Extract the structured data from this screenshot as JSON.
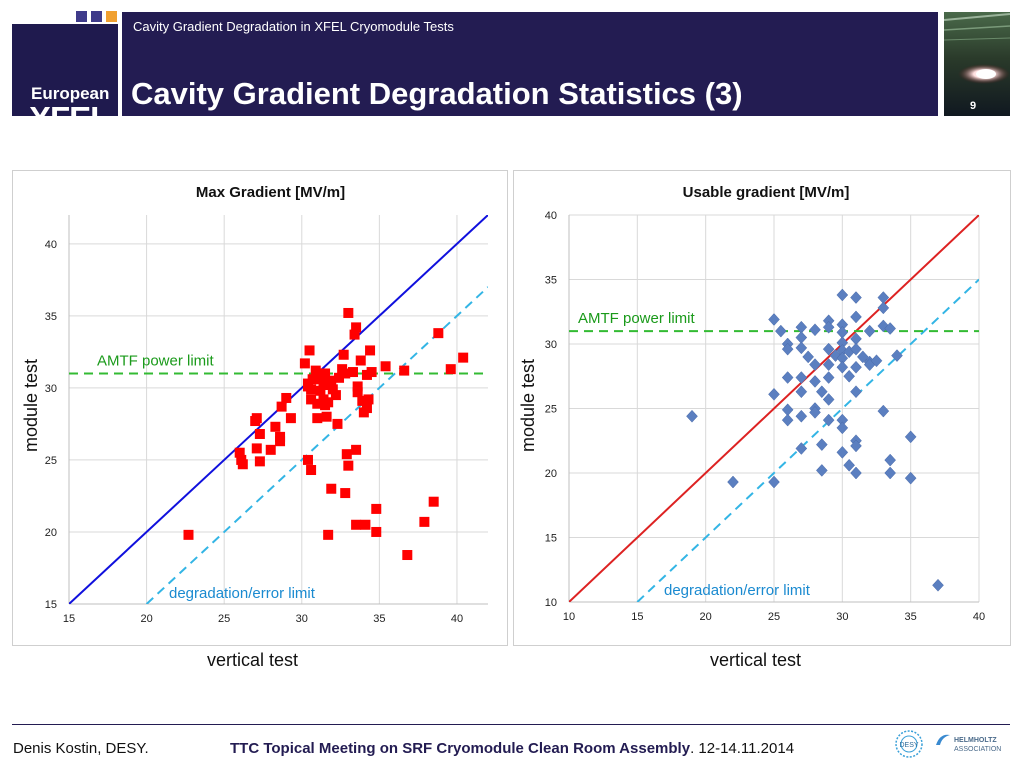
{
  "header": {
    "logo_line1": "European",
    "logo_line2": "XFEL",
    "subtitle": "Cavity Gradient Degradation in XFEL Cryomodule Tests",
    "title": "Cavity Gradient Degradation Statistics (3)",
    "page_number": "9"
  },
  "footer": {
    "author": "Denis Kostin, DESY.",
    "meeting_bold": "TTC Topical Meeting on SRF Cryomodule Clean Room Assembly",
    "meeting_rest": ". 12-14.11.2014",
    "helmholtz_line1": "HELMHOLTZ",
    "helmholtz_line2": "ASSOCIATION",
    "desy_label": "DESY"
  },
  "colors": {
    "header_bg": "#231c52",
    "red_marker": "#ff0000",
    "blue_marker": "#5b7fc0",
    "limit_line": "#33bb33",
    "degradation_line": "#33b5e5"
  },
  "chart_data": [
    {
      "type": "scatter",
      "title": "Max Gradient [MV/m]",
      "xlabel": "vertical test",
      "ylabel": "module test",
      "xlim": [
        15,
        42
      ],
      "ylim": [
        15,
        42
      ],
      "xticks": [
        15,
        20,
        25,
        30,
        35,
        40
      ],
      "yticks": [
        15,
        20,
        25,
        30,
        35,
        40
      ],
      "grid": true,
      "marker": "square",
      "marker_color": "#ff0000",
      "identity_line_color": "#1010dd",
      "degradation_offset": 5,
      "limit_value": 31,
      "limit_label": "AMTF power limit",
      "degradation_label": "degradation/error limit",
      "points": [
        [
          22.7,
          19.8
        ],
        [
          26.0,
          25.5
        ],
        [
          26.1,
          25.0
        ],
        [
          26.2,
          24.7
        ],
        [
          27.0,
          27.7
        ],
        [
          27.1,
          27.9
        ],
        [
          27.3,
          26.8
        ],
        [
          27.3,
          24.9
        ],
        [
          27.1,
          25.8
        ],
        [
          28.0,
          25.7
        ],
        [
          28.3,
          27.3
        ],
        [
          28.6,
          26.6
        ],
        [
          28.6,
          26.3
        ],
        [
          28.7,
          28.7
        ],
        [
          29.0,
          29.3
        ],
        [
          29.3,
          27.9
        ],
        [
          30.2,
          31.7
        ],
        [
          30.4,
          30.3
        ],
        [
          30.4,
          30.1
        ],
        [
          30.5,
          32.6
        ],
        [
          30.6,
          29.9
        ],
        [
          30.6,
          29.2
        ],
        [
          30.7,
          30.6
        ],
        [
          30.9,
          31.2
        ],
        [
          31.0,
          28.9
        ],
        [
          31.0,
          27.9
        ],
        [
          31.1,
          31.0
        ],
        [
          31.2,
          30.6
        ],
        [
          31.2,
          29.8
        ],
        [
          31.3,
          30.9
        ],
        [
          31.4,
          29.2
        ],
        [
          31.4,
          30.2
        ],
        [
          31.5,
          31.0
        ],
        [
          31.5,
          28.8
        ],
        [
          31.6,
          28.0
        ],
        [
          31.7,
          29.0
        ],
        [
          31.8,
          30.5
        ],
        [
          31.9,
          30.3
        ],
        [
          32.0,
          29.9
        ],
        [
          32.2,
          29.5
        ],
        [
          32.3,
          27.5
        ],
        [
          32.4,
          30.7
        ],
        [
          32.6,
          31.3
        ],
        [
          32.7,
          32.3
        ],
        [
          32.8,
          31.0
        ],
        [
          33.0,
          35.2
        ],
        [
          33.3,
          31.1
        ],
        [
          33.4,
          33.7
        ],
        [
          33.5,
          34.2
        ],
        [
          33.6,
          30.1
        ],
        [
          33.6,
          29.7
        ],
        [
          33.8,
          31.9
        ],
        [
          33.9,
          29.1
        ],
        [
          34.0,
          28.3
        ],
        [
          34.2,
          30.9
        ],
        [
          34.2,
          28.6
        ],
        [
          34.3,
          29.2
        ],
        [
          34.4,
          32.6
        ],
        [
          34.5,
          31.1
        ],
        [
          35.4,
          31.5
        ],
        [
          36.6,
          31.2
        ],
        [
          38.8,
          33.8
        ],
        [
          39.6,
          31.3
        ],
        [
          40.4,
          32.1
        ],
        [
          30.4,
          25.0
        ],
        [
          30.6,
          24.3
        ],
        [
          32.9,
          25.4
        ],
        [
          33.0,
          24.6
        ],
        [
          33.5,
          25.7
        ],
        [
          31.9,
          23.0
        ],
        [
          32.8,
          22.7
        ],
        [
          31.7,
          19.8
        ],
        [
          33.5,
          20.5
        ],
        [
          34.1,
          20.5
        ],
        [
          34.8,
          20.0
        ],
        [
          34.8,
          21.6
        ],
        [
          36.8,
          18.4
        ],
        [
          37.9,
          20.7
        ],
        [
          38.5,
          22.1
        ]
      ]
    },
    {
      "type": "scatter",
      "title": "Usable gradient [MV/m]",
      "xlabel": "vertical test",
      "ylabel": "module test",
      "xlim": [
        10,
        40
      ],
      "ylim": [
        10,
        40
      ],
      "xticks": [
        10,
        15,
        20,
        25,
        30,
        35,
        40
      ],
      "yticks": [
        10,
        15,
        20,
        25,
        30,
        35,
        40
      ],
      "grid": true,
      "marker": "diamond",
      "marker_color": "#5b7fc0",
      "identity_line_color": "#dd2222",
      "degradation_offset": 5,
      "limit_value": 31,
      "limit_label": "AMTF power limit",
      "degradation_label": "degradation/error limit",
      "points": [
        [
          19.0,
          24.4
        ],
        [
          22.0,
          19.3
        ],
        [
          25.0,
          19.3
        ],
        [
          25.0,
          26.1
        ],
        [
          25.0,
          31.9
        ],
        [
          25.5,
          31.0
        ],
        [
          26.0,
          30.0
        ],
        [
          26.0,
          29.6
        ],
        [
          26.0,
          27.4
        ],
        [
          26.0,
          24.9
        ],
        [
          26.0,
          24.1
        ],
        [
          27.0,
          31.3
        ],
        [
          27.0,
          30.5
        ],
        [
          27.0,
          29.7
        ],
        [
          27.0,
          27.4
        ],
        [
          27.0,
          26.3
        ],
        [
          27.0,
          24.4
        ],
        [
          27.0,
          21.9
        ],
        [
          27.5,
          29.0
        ],
        [
          28.0,
          31.1
        ],
        [
          28.0,
          28.4
        ],
        [
          28.0,
          27.1
        ],
        [
          28.0,
          25.0
        ],
        [
          28.0,
          24.7
        ],
        [
          28.5,
          26.3
        ],
        [
          28.5,
          22.2
        ],
        [
          28.5,
          20.2
        ],
        [
          29.0,
          31.8
        ],
        [
          29.0,
          31.3
        ],
        [
          29.0,
          29.6
        ],
        [
          29.0,
          28.4
        ],
        [
          29.0,
          27.4
        ],
        [
          29.0,
          25.7
        ],
        [
          29.0,
          24.1
        ],
        [
          29.5,
          29.1
        ],
        [
          30.0,
          33.8
        ],
        [
          30.0,
          31.5
        ],
        [
          30.0,
          30.9
        ],
        [
          30.0,
          30.1
        ],
        [
          30.0,
          29.5
        ],
        [
          30.0,
          28.9
        ],
        [
          30.0,
          28.2
        ],
        [
          30.0,
          24.1
        ],
        [
          30.0,
          23.5
        ],
        [
          30.0,
          21.6
        ],
        [
          30.5,
          29.4
        ],
        [
          30.5,
          27.5
        ],
        [
          30.5,
          20.6
        ],
        [
          31.0,
          33.6
        ],
        [
          31.0,
          32.1
        ],
        [
          31.0,
          30.4
        ],
        [
          31.0,
          29.6
        ],
        [
          31.0,
          28.2
        ],
        [
          31.0,
          26.3
        ],
        [
          31.0,
          22.5
        ],
        [
          31.0,
          22.1
        ],
        [
          31.0,
          20.0
        ],
        [
          31.5,
          29.0
        ],
        [
          32.0,
          31.0
        ],
        [
          32.0,
          28.6
        ],
        [
          32.0,
          28.4
        ],
        [
          32.5,
          28.7
        ],
        [
          33.0,
          33.6
        ],
        [
          33.0,
          32.8
        ],
        [
          33.0,
          31.4
        ],
        [
          33.0,
          24.8
        ],
        [
          33.5,
          31.2
        ],
        [
          33.5,
          21.0
        ],
        [
          33.5,
          20.0
        ],
        [
          34.0,
          29.1
        ],
        [
          35.0,
          22.8
        ],
        [
          35.0,
          19.6
        ],
        [
          37.0,
          11.3
        ]
      ]
    }
  ]
}
